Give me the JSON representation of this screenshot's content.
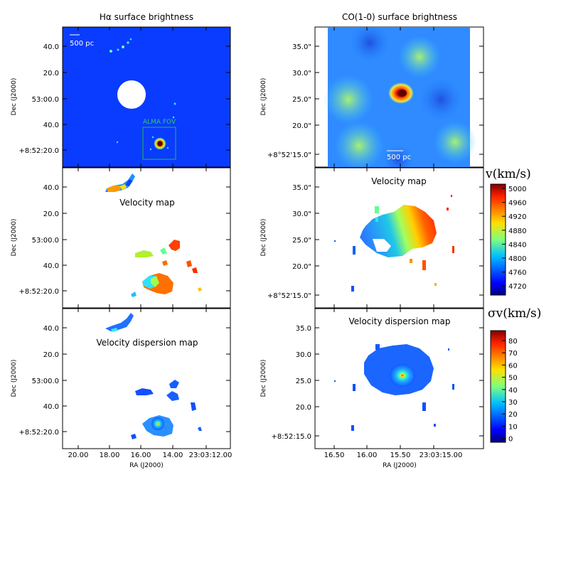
{
  "titles": {
    "left": "Hα surface brightness",
    "right": "CO(1-0) surface brightness"
  },
  "labels": {
    "dec": "Dec (J2000)",
    "ra": "RA (J2000)",
    "scalebar_left": "500 pc",
    "scalebar_right": "500 pc",
    "alma_fov": "ALMA FOV",
    "velocity_map": "Velocity map",
    "dispersion_map": "Velocity dispersion map"
  },
  "ticks": {
    "left_dec": [
      "40.0",
      "20.0",
      "53:00.0",
      "40.0",
      "+8:52:20.0"
    ],
    "right_dec_top": [
      "35.0\"",
      "30.0\"",
      "25.0\"",
      "20.0\"",
      "+8°52'15.0\""
    ],
    "right_dec_bottom": [
      "35.0",
      "30.0",
      "25.0",
      "20.0",
      "+8:52:15.0"
    ],
    "left_ra": [
      "20.00",
      "18.00",
      "16.00",
      "14.00",
      "23:03:12.00"
    ],
    "right_ra": [
      "16.50",
      "16.00",
      "15.50",
      "23:03:15.00"
    ]
  },
  "colorbars": {
    "velocity": {
      "title": "v(km/s)",
      "ticks": [
        "5000",
        "4960",
        "4920",
        "4880",
        "4840",
        "4800",
        "4760",
        "4720"
      ]
    },
    "dispersion": {
      "title": "σv(km/s)",
      "ticks": [
        "80",
        "70",
        "60",
        "50",
        "40",
        "30",
        "20",
        "10",
        "0"
      ]
    },
    "colormap": "jet"
  },
  "chart_data": {
    "type": "heatmap",
    "panels": [
      "Hα surface brightness",
      "CO(1-0) surface brightness",
      "Velocity map",
      "Velocity map",
      "Velocity dispersion map",
      "Velocity dispersion map"
    ],
    "velocity_range": [
      4700,
      5010
    ],
    "dispersion_range": [
      -8,
      88
    ]
  }
}
